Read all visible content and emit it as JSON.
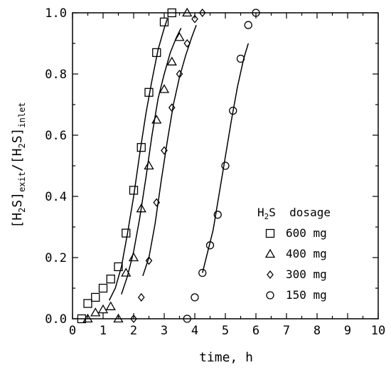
{
  "chart_data": {
    "type": "scatter",
    "xlabel": "time, h",
    "ylabel_parts": {
      "b1": "[H",
      "s1": "2",
      "m1": "S]",
      "sub1": "exit",
      "m2": "/[H",
      "s2": "2",
      "m3": "S]",
      "sub2": "inlet"
    },
    "xlim": [
      0,
      10
    ],
    "ylim": [
      0,
      1.0
    ],
    "xticks": [
      0,
      1,
      2,
      3,
      4,
      5,
      6,
      7,
      8,
      9,
      10
    ],
    "xtick_labels": [
      "0",
      "1",
      "2",
      "3",
      "4",
      "5",
      "6",
      "7",
      "8",
      "9",
      "10"
    ],
    "yticks": [
      0,
      0.2,
      0.4,
      0.6,
      0.8,
      1.0
    ],
    "ytick_labels": [
      "0.0",
      "0.2",
      "0.4",
      "0.6",
      "0.8",
      "1.0"
    ],
    "grid": false,
    "legend_position": "lower-right",
    "legend_title_parts": {
      "a": "H",
      "sub": "2",
      "b": "S  dosage"
    },
    "series": [
      {
        "name": "600  mg",
        "marker": "square",
        "points": [
          [
            0.3,
            0.0
          ],
          [
            0.5,
            0.05
          ],
          [
            0.75,
            0.07
          ],
          [
            1.0,
            0.1
          ],
          [
            1.25,
            0.13
          ],
          [
            1.5,
            0.17
          ],
          [
            1.75,
            0.28
          ],
          [
            2.0,
            0.42
          ],
          [
            2.25,
            0.56
          ],
          [
            2.5,
            0.74
          ],
          [
            2.75,
            0.87
          ],
          [
            3.0,
            0.97
          ],
          [
            3.25,
            1.0
          ]
        ],
        "curve": [
          [
            1.2,
            0.06
          ],
          [
            1.4,
            0.1
          ],
          [
            1.6,
            0.17
          ],
          [
            1.8,
            0.28
          ],
          [
            2.0,
            0.4
          ],
          [
            2.2,
            0.54
          ],
          [
            2.4,
            0.67
          ],
          [
            2.6,
            0.78
          ],
          [
            2.8,
            0.88
          ],
          [
            3.0,
            0.95
          ],
          [
            3.1,
            0.98
          ]
        ]
      },
      {
        "name": "400  mg",
        "marker": "triangle",
        "points": [
          [
            0.5,
            0.0
          ],
          [
            0.75,
            0.02
          ],
          [
            1.0,
            0.03
          ],
          [
            1.25,
            0.04
          ],
          [
            1.5,
            0.0
          ],
          [
            1.75,
            0.15
          ],
          [
            2.0,
            0.2
          ],
          [
            2.25,
            0.36
          ],
          [
            2.5,
            0.5
          ],
          [
            2.75,
            0.65
          ],
          [
            3.0,
            0.75
          ],
          [
            3.25,
            0.84
          ],
          [
            3.5,
            0.92
          ],
          [
            3.75,
            1.0
          ]
        ],
        "curve": [
          [
            1.6,
            0.08
          ],
          [
            1.8,
            0.14
          ],
          [
            2.0,
            0.22
          ],
          [
            2.2,
            0.33
          ],
          [
            2.4,
            0.46
          ],
          [
            2.6,
            0.6
          ],
          [
            2.8,
            0.72
          ],
          [
            3.0,
            0.8
          ],
          [
            3.2,
            0.87
          ],
          [
            3.4,
            0.92
          ],
          [
            3.55,
            0.95
          ]
        ]
      },
      {
        "name": "300  mg",
        "marker": "diamond",
        "points": [
          [
            2.0,
            0.0
          ],
          [
            2.25,
            0.07
          ],
          [
            2.5,
            0.19
          ],
          [
            2.75,
            0.38
          ],
          [
            3.0,
            0.55
          ],
          [
            3.25,
            0.69
          ],
          [
            3.5,
            0.8
          ],
          [
            3.75,
            0.9
          ],
          [
            4.0,
            0.98
          ],
          [
            4.25,
            1.0
          ]
        ],
        "curve": [
          [
            2.3,
            0.14
          ],
          [
            2.5,
            0.2
          ],
          [
            2.7,
            0.31
          ],
          [
            2.9,
            0.45
          ],
          [
            3.1,
            0.58
          ],
          [
            3.3,
            0.7
          ],
          [
            3.5,
            0.79
          ],
          [
            3.7,
            0.86
          ],
          [
            3.9,
            0.92
          ],
          [
            4.05,
            0.96
          ]
        ]
      },
      {
        "name": "150  mg",
        "marker": "circle",
        "points": [
          [
            3.75,
            0.0
          ],
          [
            4.0,
            0.07
          ],
          [
            4.25,
            0.15
          ],
          [
            4.5,
            0.24
          ],
          [
            4.75,
            0.34
          ],
          [
            5.0,
            0.5
          ],
          [
            5.25,
            0.68
          ],
          [
            5.5,
            0.85
          ],
          [
            5.75,
            0.96
          ],
          [
            6.0,
            1.0
          ]
        ],
        "curve": [
          [
            4.25,
            0.15
          ],
          [
            4.4,
            0.21
          ],
          [
            4.6,
            0.29
          ],
          [
            4.8,
            0.41
          ],
          [
            5.0,
            0.53
          ],
          [
            5.2,
            0.65
          ],
          [
            5.4,
            0.76
          ],
          [
            5.6,
            0.85
          ],
          [
            5.75,
            0.9
          ]
        ]
      }
    ]
  }
}
